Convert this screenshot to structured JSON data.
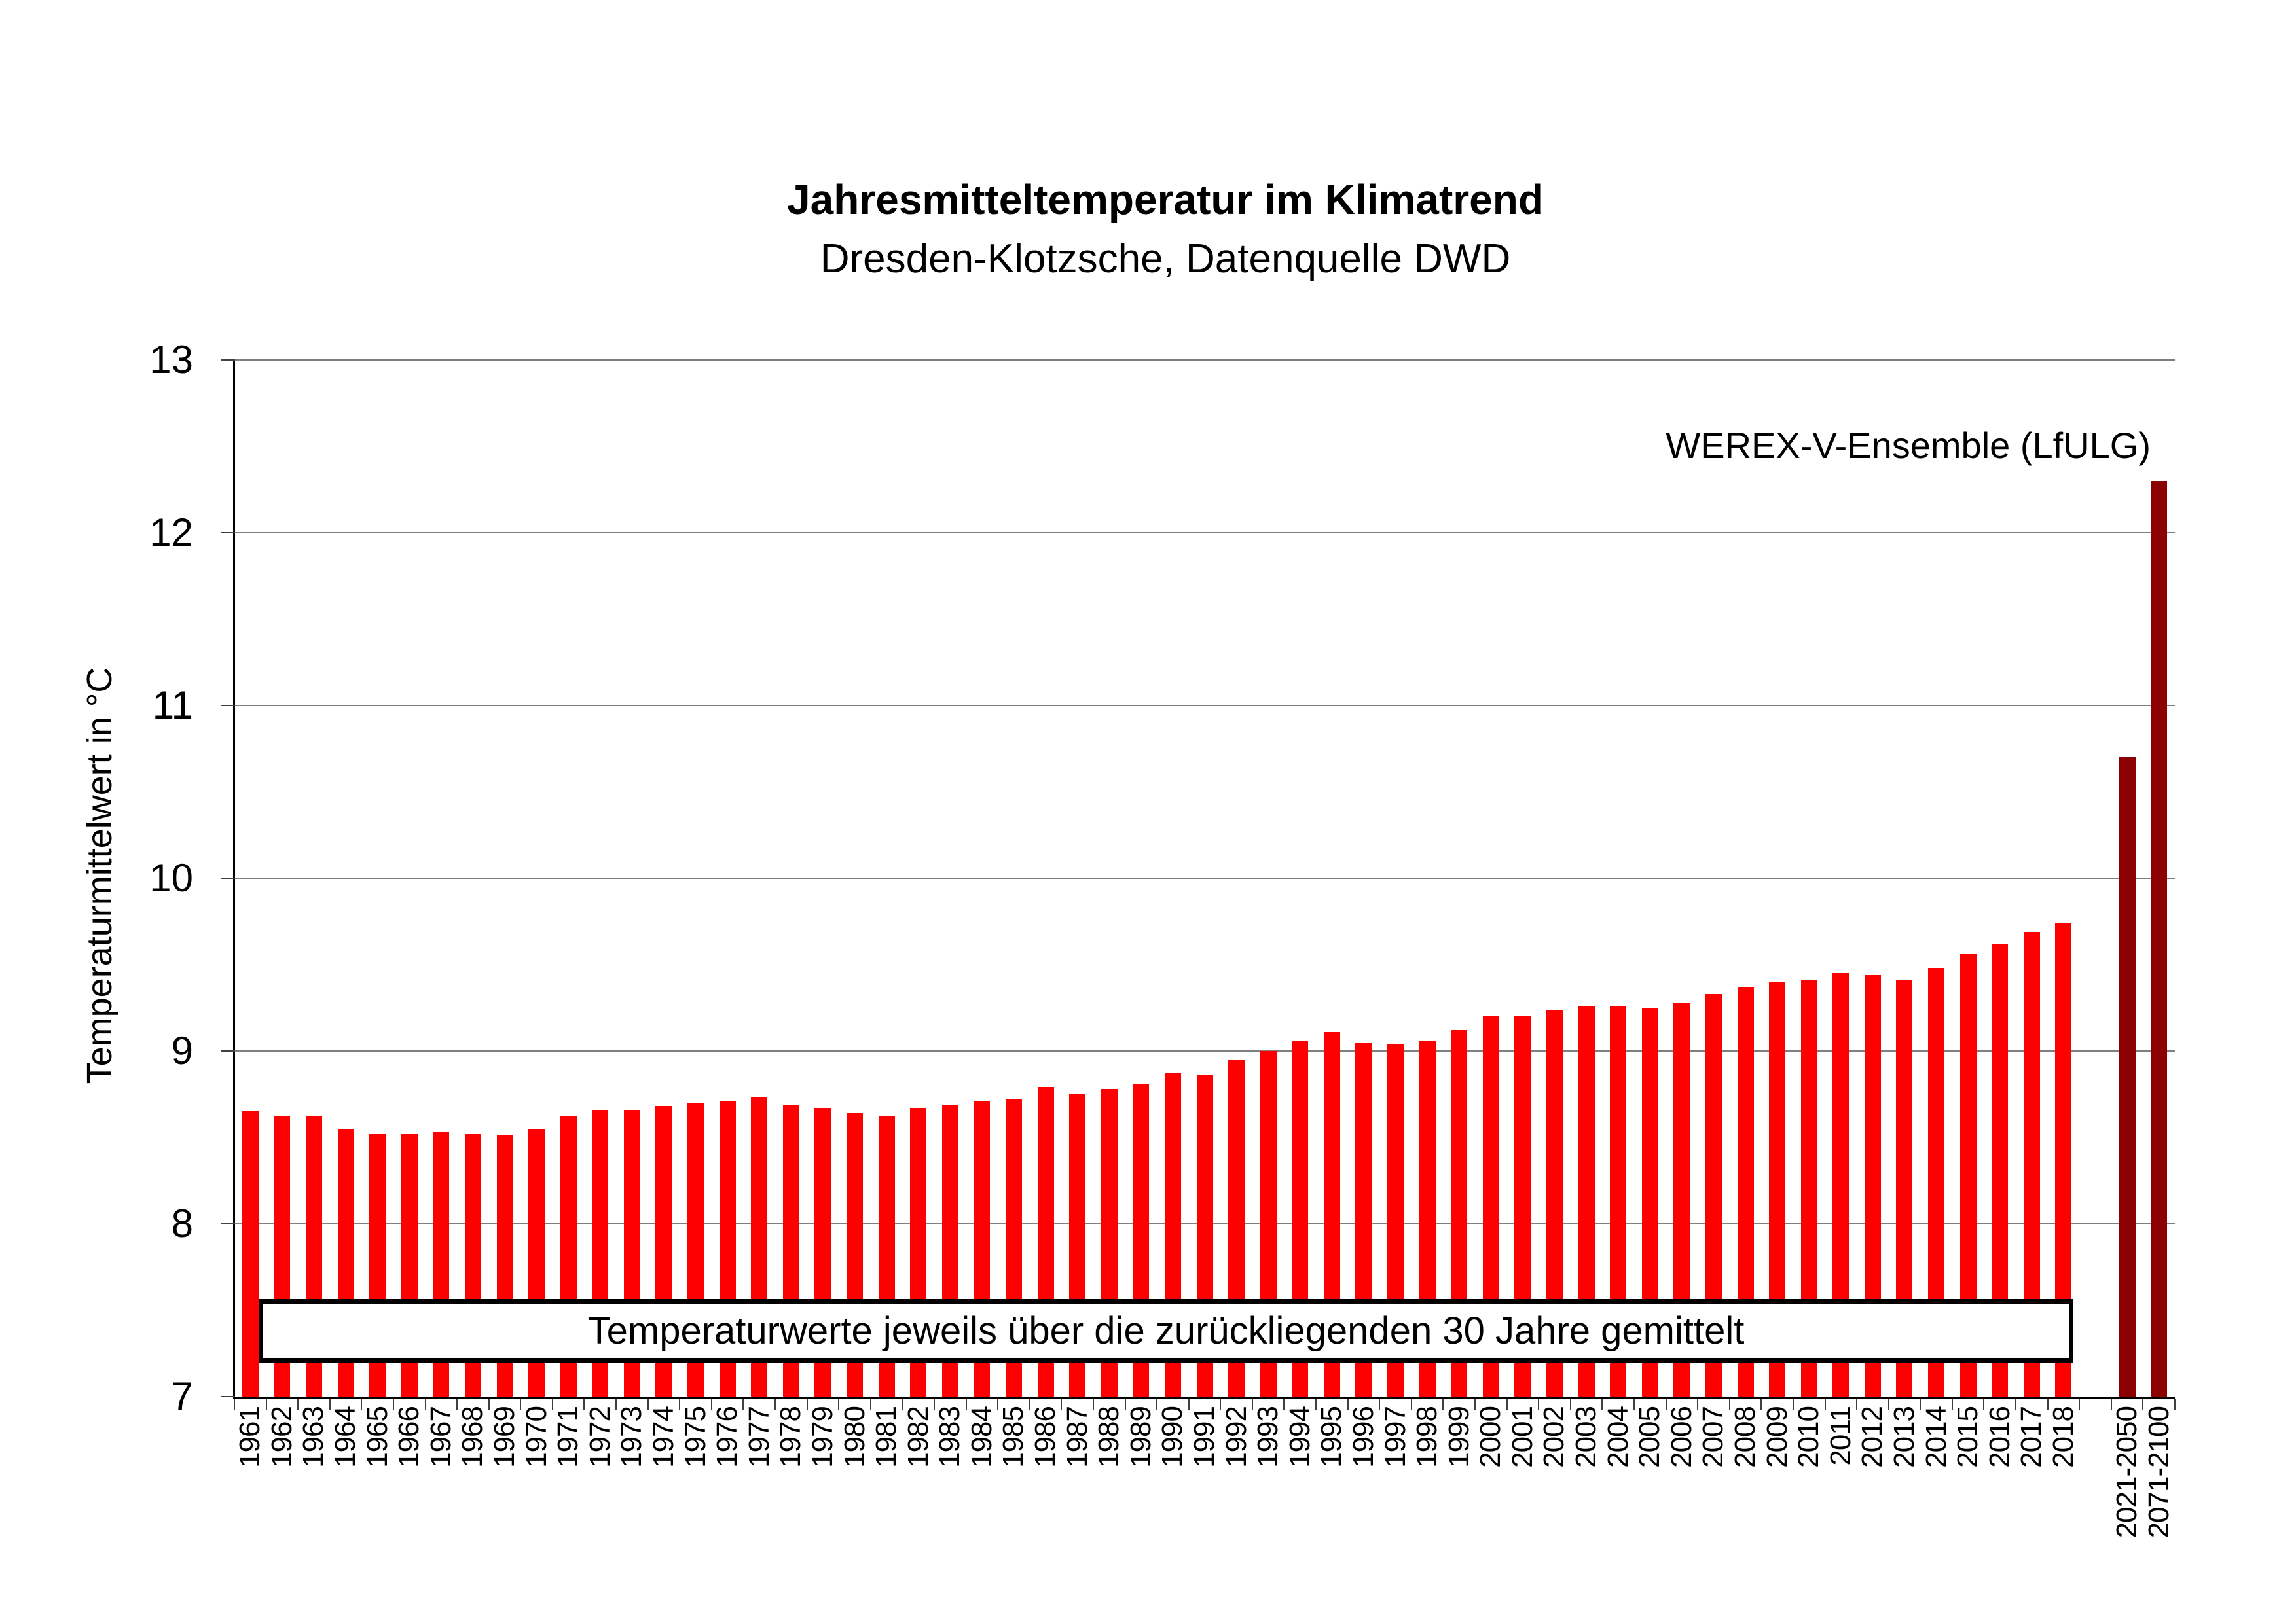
{
  "chart_data": {
    "type": "bar",
    "title": "Jahresmitteltemperatur im Klimatrend",
    "subtitle": "Dresden-Klotzsche, Datenquelle DWD",
    "ylabel": "Temperaturmittelwert in °C",
    "ylim": [
      7,
      13
    ],
    "yticks": [
      "7",
      "8",
      "9",
      "10",
      "11",
      "12",
      "13"
    ],
    "grid": true,
    "legend_position": "none",
    "annotation_box": "Temperaturwerte jeweils über die zurückliegenden 30 Jahre gemittelt",
    "ensemble_label": "WEREX-V-Ensemble (LfULG)",
    "colors": {
      "observation": "#FF0000",
      "projection": "#8B0000",
      "gridline": "#808080",
      "axis": "#000000"
    },
    "bars": [
      {
        "label": "1961",
        "value": 8.65,
        "series": "observation"
      },
      {
        "label": "1962",
        "value": 8.62,
        "series": "observation"
      },
      {
        "label": "1963",
        "value": 8.62,
        "series": "observation"
      },
      {
        "label": "1964",
        "value": 8.55,
        "series": "observation"
      },
      {
        "label": "1965",
        "value": 8.52,
        "series": "observation"
      },
      {
        "label": "1966",
        "value": 8.52,
        "series": "observation"
      },
      {
        "label": "1967",
        "value": 8.53,
        "series": "observation"
      },
      {
        "label": "1968",
        "value": 8.52,
        "series": "observation"
      },
      {
        "label": "1969",
        "value": 8.51,
        "series": "observation"
      },
      {
        "label": "1970",
        "value": 8.55,
        "series": "observation"
      },
      {
        "label": "1971",
        "value": 8.62,
        "series": "observation"
      },
      {
        "label": "1972",
        "value": 8.66,
        "series": "observation"
      },
      {
        "label": "1973",
        "value": 8.66,
        "series": "observation"
      },
      {
        "label": "1974",
        "value": 8.68,
        "series": "observation"
      },
      {
        "label": "1975",
        "value": 8.7,
        "series": "observation"
      },
      {
        "label": "1976",
        "value": 8.71,
        "series": "observation"
      },
      {
        "label": "1977",
        "value": 8.73,
        "series": "observation"
      },
      {
        "label": "1978",
        "value": 8.69,
        "series": "observation"
      },
      {
        "label": "1979",
        "value": 8.67,
        "series": "observation"
      },
      {
        "label": "1980",
        "value": 8.64,
        "series": "observation"
      },
      {
        "label": "1981",
        "value": 8.62,
        "series": "observation"
      },
      {
        "label": "1982",
        "value": 8.67,
        "series": "observation"
      },
      {
        "label": "1983",
        "value": 8.69,
        "series": "observation"
      },
      {
        "label": "1984",
        "value": 8.71,
        "series": "observation"
      },
      {
        "label": "1985",
        "value": 8.72,
        "series": "observation"
      },
      {
        "label": "1986",
        "value": 8.79,
        "series": "observation"
      },
      {
        "label": "1987",
        "value": 8.75,
        "series": "observation"
      },
      {
        "label": "1988",
        "value": 8.78,
        "series": "observation"
      },
      {
        "label": "1989",
        "value": 8.81,
        "series": "observation"
      },
      {
        "label": "1990",
        "value": 8.87,
        "series": "observation"
      },
      {
        "label": "1991",
        "value": 8.86,
        "series": "observation"
      },
      {
        "label": "1992",
        "value": 8.95,
        "series": "observation"
      },
      {
        "label": "1993",
        "value": 9.0,
        "series": "observation"
      },
      {
        "label": "1994",
        "value": 9.06,
        "series": "observation"
      },
      {
        "label": "1995",
        "value": 9.11,
        "series": "observation"
      },
      {
        "label": "1996",
        "value": 9.05,
        "series": "observation"
      },
      {
        "label": "1997",
        "value": 9.04,
        "series": "observation"
      },
      {
        "label": "1998",
        "value": 9.06,
        "series": "observation"
      },
      {
        "label": "1999",
        "value": 9.12,
        "series": "observation"
      },
      {
        "label": "2000",
        "value": 9.2,
        "series": "observation"
      },
      {
        "label": "2001",
        "value": 9.2,
        "series": "observation"
      },
      {
        "label": "2002",
        "value": 9.24,
        "series": "observation"
      },
      {
        "label": "2003",
        "value": 9.26,
        "series": "observation"
      },
      {
        "label": "2004",
        "value": 9.26,
        "series": "observation"
      },
      {
        "label": "2005",
        "value": 9.25,
        "series": "observation"
      },
      {
        "label": "2006",
        "value": 9.28,
        "series": "observation"
      },
      {
        "label": "2007",
        "value": 9.33,
        "series": "observation"
      },
      {
        "label": "2008",
        "value": 9.37,
        "series": "observation"
      },
      {
        "label": "2009",
        "value": 9.4,
        "series": "observation"
      },
      {
        "label": "2010",
        "value": 9.41,
        "series": "observation"
      },
      {
        "label": "2011",
        "value": 9.45,
        "series": "observation"
      },
      {
        "label": "2012",
        "value": 9.44,
        "series": "observation"
      },
      {
        "label": "2013",
        "value": 9.41,
        "series": "observation"
      },
      {
        "label": "2014",
        "value": 9.48,
        "series": "observation"
      },
      {
        "label": "2015",
        "value": 9.56,
        "series": "observation"
      },
      {
        "label": "2016",
        "value": 9.62,
        "series": "observation"
      },
      {
        "label": "2017",
        "value": 9.69,
        "series": "observation"
      },
      {
        "label": "2018",
        "value": 9.74,
        "series": "observation"
      },
      {
        "label": "",
        "value": null,
        "series": null
      },
      {
        "label": "2021-2050",
        "value": 10.7,
        "series": "projection"
      },
      {
        "label": "2071-2100",
        "value": 12.3,
        "series": "projection"
      }
    ]
  }
}
